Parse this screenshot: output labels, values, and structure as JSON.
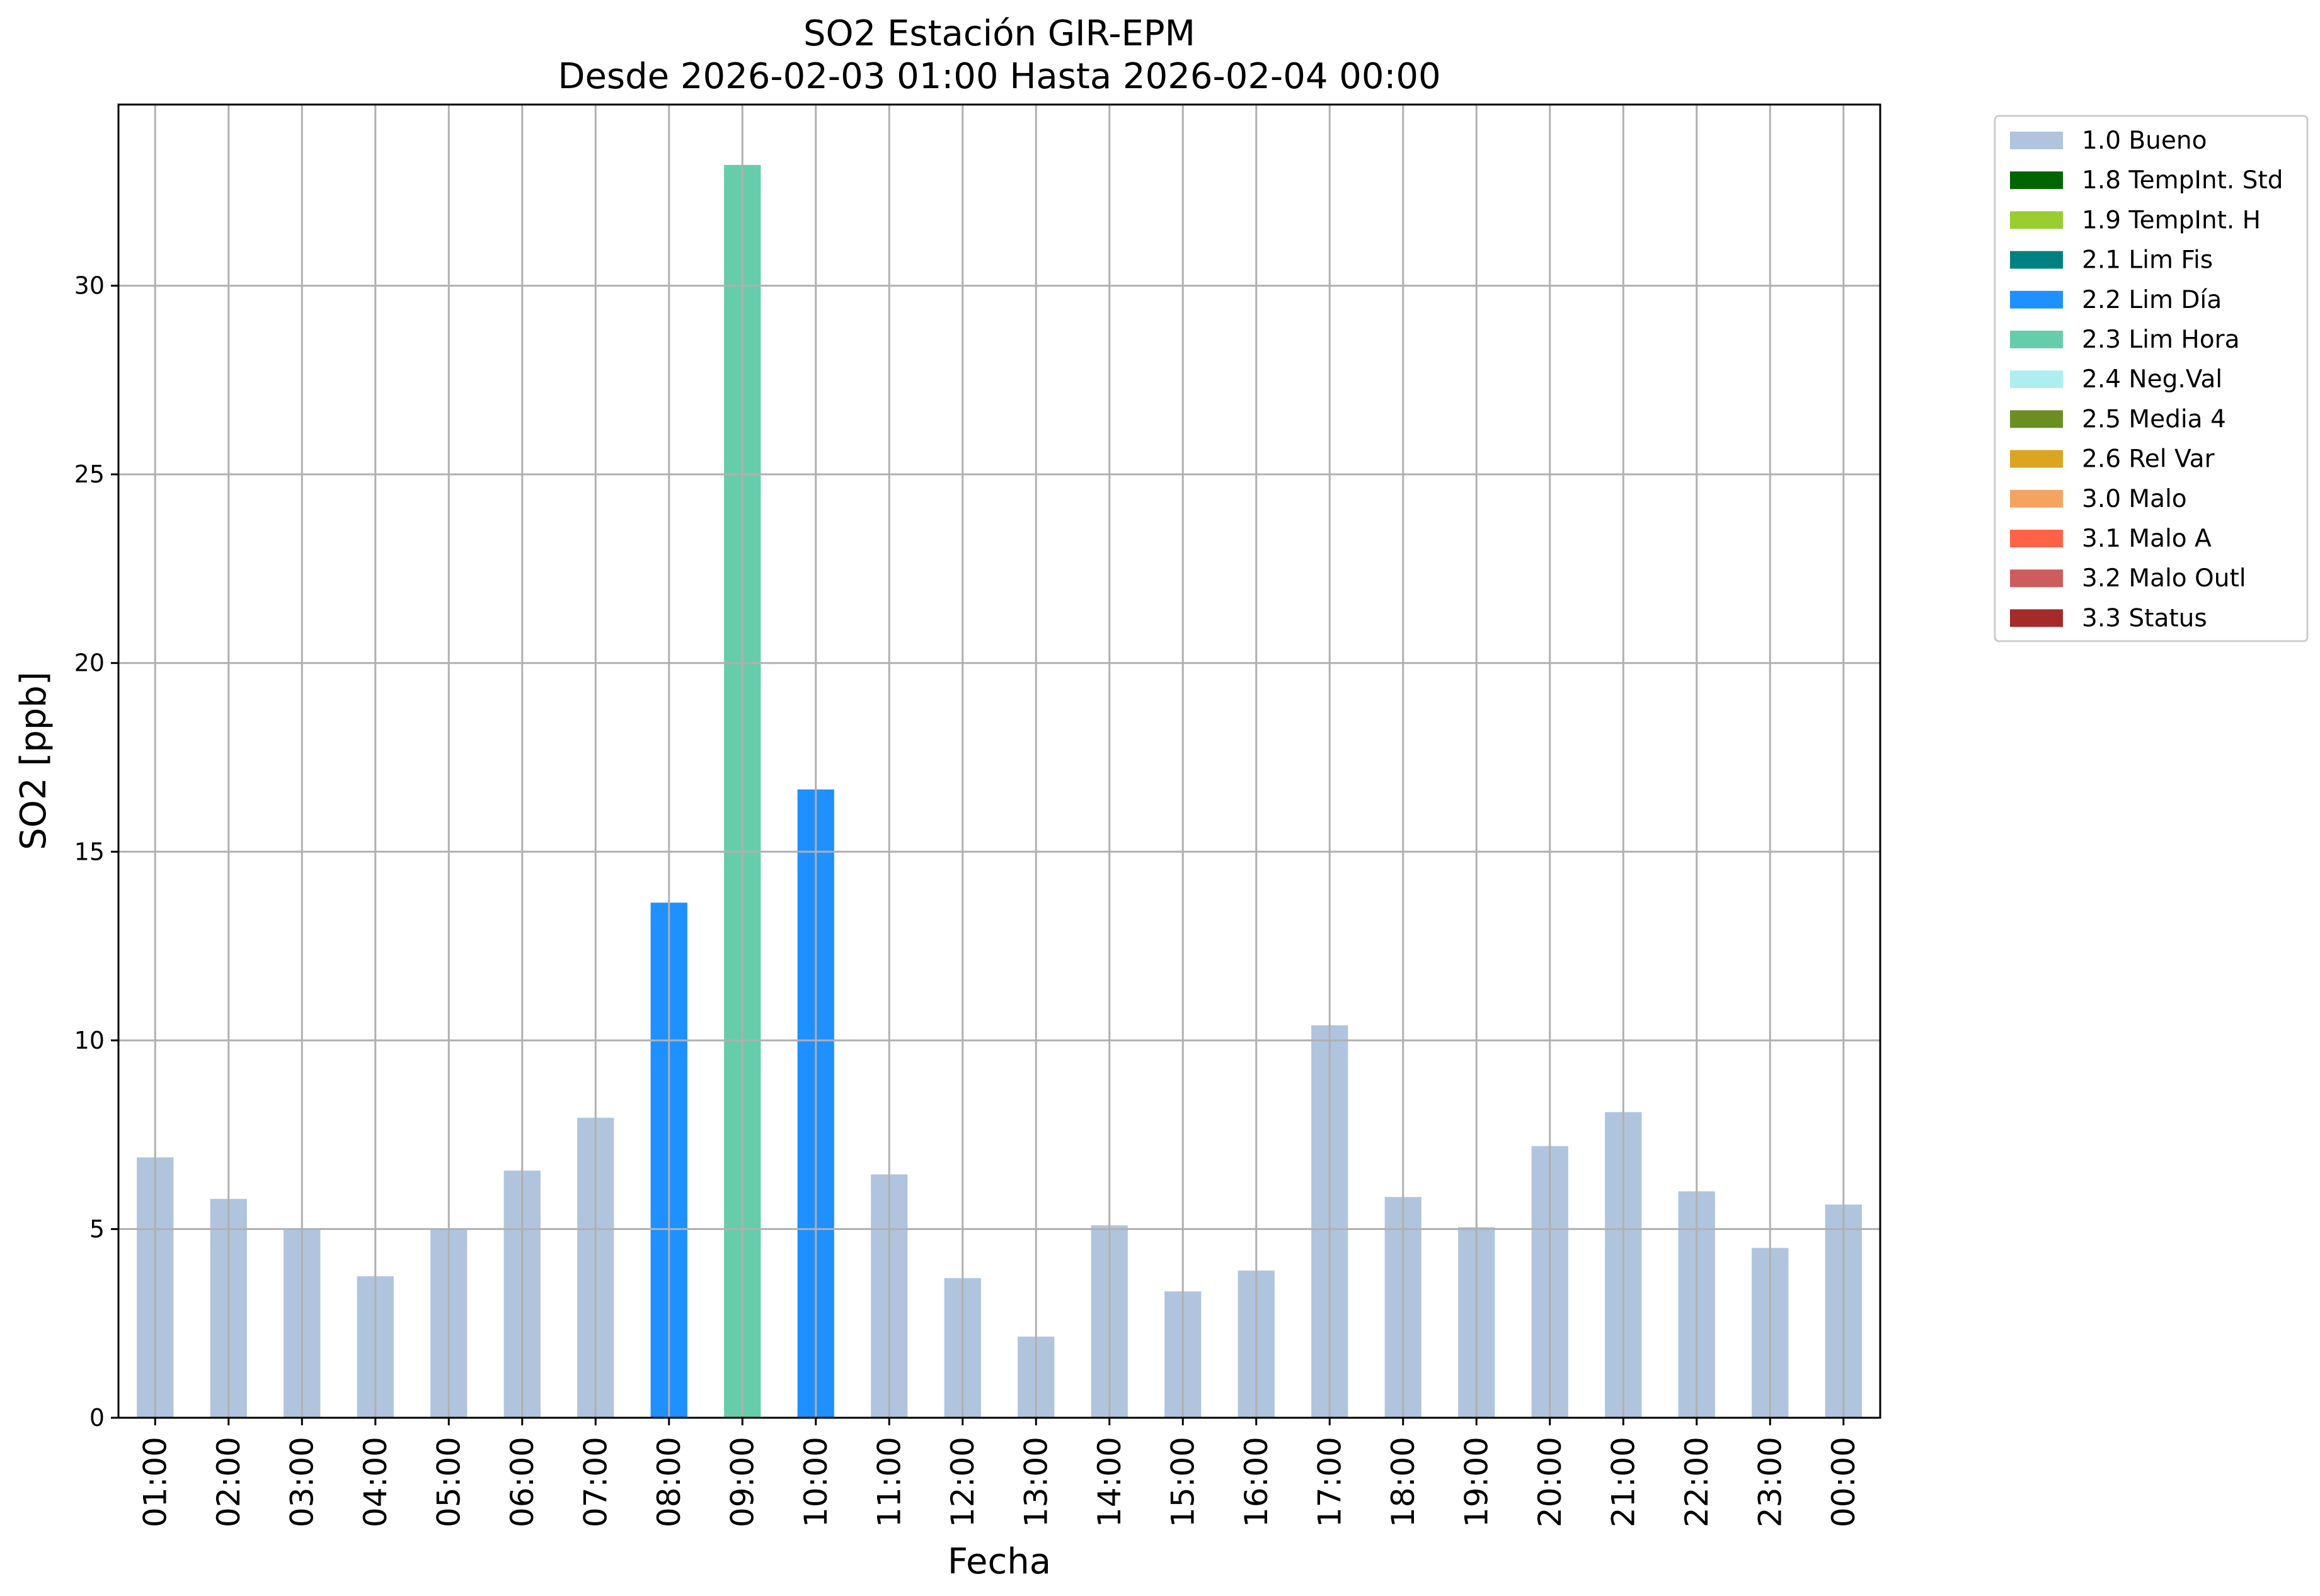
{
  "chart_data": {
    "type": "bar",
    "title": "SO2 Estación GIR-EPM",
    "subtitle": "Desde 2026-02-03 01:00 Hasta 2026-02-04 00:00",
    "xlabel": "Fecha",
    "ylabel": "SO2 [ppb]",
    "ylim": [
      0,
      34.8
    ],
    "yticks": [
      0,
      5,
      10,
      15,
      20,
      25,
      30
    ],
    "grid": true,
    "legend_position": "outside-top-right",
    "categories": [
      "01:00",
      "02:00",
      "03:00",
      "04:00",
      "05:00",
      "06:00",
      "07:00",
      "08:00",
      "09:00",
      "10:00",
      "11:00",
      "12:00",
      "13:00",
      "14:00",
      "15:00",
      "16:00",
      "17:00",
      "18:00",
      "19:00",
      "20:00",
      "21:00",
      "22:00",
      "23:00",
      "00:00"
    ],
    "values": [
      6.9,
      5.8,
      5.0,
      3.75,
      5.0,
      6.55,
      7.95,
      13.65,
      33.2,
      16.65,
      6.45,
      3.7,
      2.15,
      5.1,
      3.35,
      3.9,
      10.4,
      5.85,
      5.05,
      7.2,
      8.1,
      6.0,
      4.5,
      5.65
    ],
    "flags": [
      "1.0 Bueno",
      "1.0 Bueno",
      "1.0 Bueno",
      "1.0 Bueno",
      "1.0 Bueno",
      "1.0 Bueno",
      "1.0 Bueno",
      "2.2 Lim Día",
      "2.3 Lim Hora",
      "2.2 Lim Día",
      "1.0 Bueno",
      "1.0 Bueno",
      "1.0 Bueno",
      "1.0 Bueno",
      "1.0 Bueno",
      "1.0 Bueno",
      "1.0 Bueno",
      "1.0 Bueno",
      "1.0 Bueno",
      "1.0 Bueno",
      "1.0 Bueno",
      "1.0 Bueno",
      "1.0 Bueno",
      "1.0 Bueno"
    ],
    "legend": [
      {
        "label": "1.0 Bueno",
        "color": "#b0c4de"
      },
      {
        "label": "1.8 TempInt. Std",
        "color": "#006400"
      },
      {
        "label": "1.9 TempInt. H",
        "color": "#9acd32"
      },
      {
        "label": "2.1 Lim Fis",
        "color": "#008080"
      },
      {
        "label": "2.2 Lim Día",
        "color": "#1e90ff"
      },
      {
        "label": "2.3 Lim Hora",
        "color": "#66cdaa"
      },
      {
        "label": "2.4 Neg.Val",
        "color": "#afeeee"
      },
      {
        "label": "2.5 Media 4",
        "color": "#6b8e23"
      },
      {
        "label": "2.6 Rel Var",
        "color": "#daa520"
      },
      {
        "label": "3.0 Malo",
        "color": "#f4a460"
      },
      {
        "label": "3.1 Malo A",
        "color": "#ff6347"
      },
      {
        "label": "3.2 Malo Outl",
        "color": "#cd5c5c"
      },
      {
        "label": "3.3 Status",
        "color": "#a52a2a"
      }
    ]
  }
}
